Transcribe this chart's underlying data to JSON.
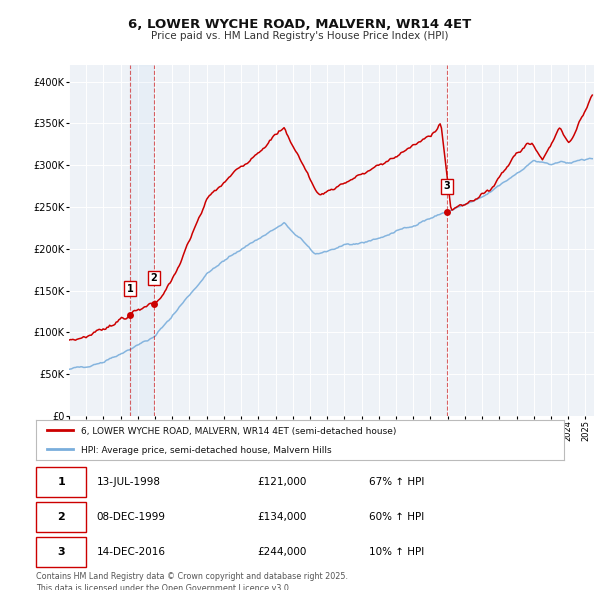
{
  "title": "6, LOWER WYCHE ROAD, MALVERN, WR14 4ET",
  "subtitle": "Price paid vs. HM Land Registry's House Price Index (HPI)",
  "hpi_label": "HPI: Average price, semi-detached house, Malvern Hills",
  "price_label": "6, LOWER WYCHE ROAD, MALVERN, WR14 4ET (semi-detached house)",
  "price_color": "#cc0000",
  "hpi_color": "#7aaedc",
  "background_color": "#eef2f7",
  "grid_color": "#ffffff",
  "ylim": [
    0,
    420000
  ],
  "xlim_start": 1995.0,
  "xlim_end": 2025.5,
  "transactions": [
    {
      "id": 1,
      "date_num": 1998.54,
      "price": 121000,
      "label": "13-JUL-1998",
      "pct": "67%"
    },
    {
      "id": 2,
      "date_num": 1999.93,
      "price": 134000,
      "label": "08-DEC-1999",
      "pct": "60%"
    },
    {
      "id": 3,
      "date_num": 2016.96,
      "price": 244000,
      "label": "14-DEC-2016",
      "pct": "10%"
    }
  ],
  "footer": "Contains HM Land Registry data © Crown copyright and database right 2025.\nThis data is licensed under the Open Government Licence v3.0.",
  "yticks": [
    0,
    50000,
    100000,
    150000,
    200000,
    250000,
    300000,
    350000,
    400000
  ],
  "ytick_labels": [
    "£0",
    "£50K",
    "£100K",
    "£150K",
    "£200K",
    "£250K",
    "£300K",
    "£350K",
    "£400K"
  ],
  "row_data": [
    [
      1,
      "13-JUL-1998",
      "£121,000",
      "67% ↑ HPI"
    ],
    [
      2,
      "08-DEC-1999",
      "£134,000",
      "60% ↑ HPI"
    ],
    [
      3,
      "14-DEC-2016",
      "£244,000",
      "10% ↑ HPI"
    ]
  ]
}
